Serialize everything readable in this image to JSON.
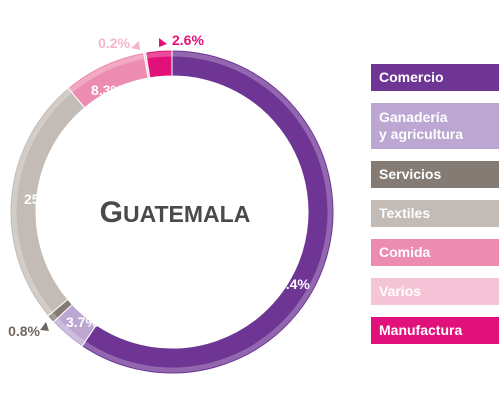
{
  "chart_data": {
    "type": "pie",
    "title": "Guatemala",
    "donut": true,
    "slices": [
      {
        "name": "Comercio",
        "value": 59.4,
        "label": "59.4%",
        "color": "#6e3594"
      },
      {
        "name": "Ganadería y agricultura",
        "value": 3.7,
        "label": "3.7%",
        "color": "#bca7d3"
      },
      {
        "name": "Servicios",
        "value": 0.8,
        "label": "0.8%",
        "color": "#837b74"
      },
      {
        "name": "Textiles",
        "value": 25,
        "label": "25%",
        "color": "#c3bcb6"
      },
      {
        "name": "Comida",
        "value": 8.3,
        "label": "8.3%",
        "color": "#ec8cb0"
      },
      {
        "name": "Varios",
        "value": 0.2,
        "label": "0.2%",
        "color": "#f5c5d7"
      },
      {
        "name": "Manufactura",
        "value": 2.6,
        "label": "2.6%",
        "color": "#e2107a"
      }
    ],
    "legend": [
      {
        "lines": [
          "Comercio"
        ],
        "color": "#6e3594"
      },
      {
        "lines": [
          "Ganadería",
          "y agricultura"
        ],
        "color": "#bca7d3"
      },
      {
        "lines": [
          "Servicios"
        ],
        "color": "#837b74"
      },
      {
        "lines": [
          "Textiles"
        ],
        "color": "#c3bcb6"
      },
      {
        "lines": [
          "Comida"
        ],
        "color": "#ec8cb0"
      },
      {
        "lines": [
          "Varios"
        ],
        "color": "#f5c5d7"
      },
      {
        "lines": [
          "Manufactura"
        ],
        "color": "#e2107a"
      }
    ],
    "label_colors": {
      "inside": "#ffffff",
      "outside_varios": "#f3b6cc",
      "outside_manufactura": "#e2107a",
      "outside_servicios": "#6f6760"
    }
  }
}
